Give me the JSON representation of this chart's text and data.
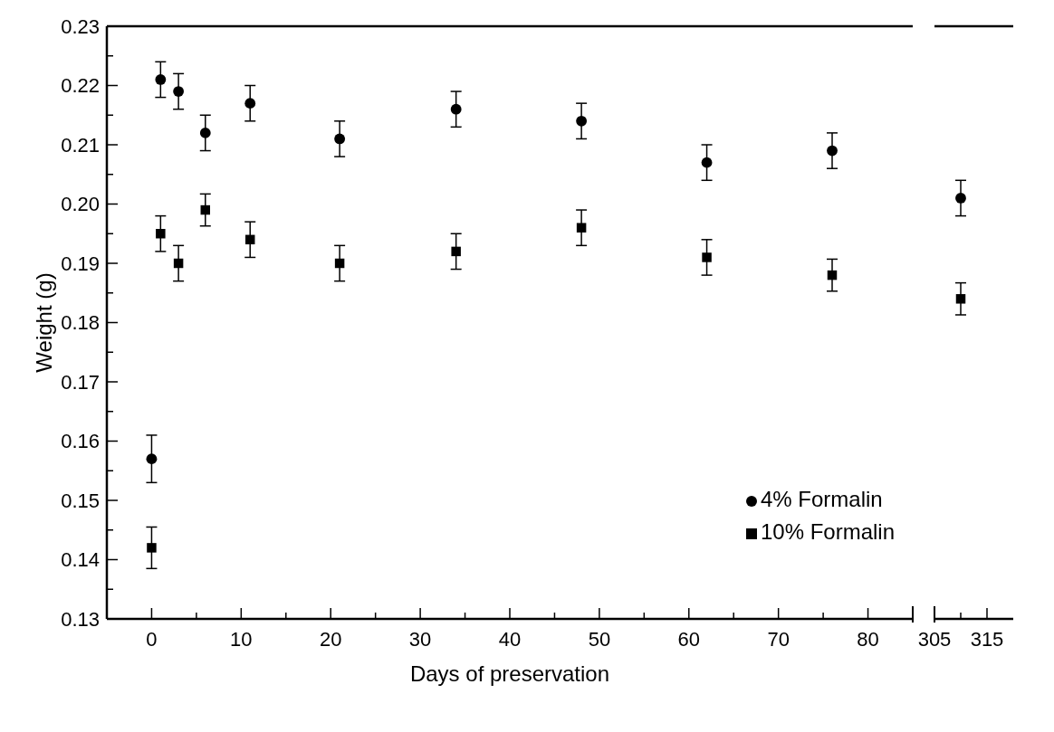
{
  "chart_data": [
    {
      "type": "scatter",
      "xlabel": "Days of preservation",
      "ylabel": "Weight (g)",
      "xlim": [
        -5,
        85
      ],
      "xticks": [
        0,
        {
          "value": 5,
          "label": null
        },
        10,
        {
          "value": 15,
          "label": null
        },
        20,
        {
          "value": 25,
          "label": null
        },
        30,
        {
          "value": 35,
          "label": null
        },
        40,
        {
          "value": 45,
          "label": null
        },
        50,
        {
          "value": 55,
          "label": null
        },
        60,
        {
          "value": 65,
          "label": null
        },
        70,
        {
          "value": 75,
          "label": null
        },
        80
      ],
      "ylim": [
        0.13,
        0.23
      ],
      "yticks": [
        0.13,
        {
          "value": 0.135,
          "label": null
        },
        0.14,
        {
          "value": 0.145,
          "label": null
        },
        0.15,
        {
          "value": 0.155,
          "label": null
        },
        0.16,
        {
          "value": 0.165,
          "label": null
        },
        0.17,
        {
          "value": 0.175,
          "label": null
        },
        0.18,
        {
          "value": 0.185,
          "label": null
        },
        0.19,
        {
          "value": 0.195,
          "label": null
        },
        {
          "value": 0.2,
          "label": "0.20"
        },
        {
          "value": 0.205,
          "label": null
        },
        0.21,
        {
          "value": 0.215,
          "label": null
        },
        0.22,
        {
          "value": 0.225,
          "label": null
        },
        0.23
      ],
      "legend": "bottom right",
      "series": [
        {
          "name": "4% Formalin",
          "color": "#000000",
          "marker": "circle",
          "x": [
            0,
            1,
            3,
            6,
            11,
            21,
            34,
            48,
            62,
            76
          ],
          "values": [
            0.157,
            0.221,
            0.219,
            0.212,
            0.217,
            0.211,
            0.216,
            0.214,
            0.207,
            0.209
          ],
          "errors": [
            0.004,
            0.003,
            0.003,
            0.003,
            0.003,
            0.003,
            0.003,
            0.003,
            0.003,
            0.003
          ]
        },
        {
          "name": "10% Formalin",
          "color": "#000000",
          "marker": "square",
          "x": [
            0,
            1,
            3,
            6,
            11,
            21,
            34,
            48,
            62,
            76
          ],
          "values": [
            0.142,
            0.195,
            0.19,
            0.199,
            0.194,
            0.19,
            0.192,
            0.196,
            0.191,
            0.188
          ],
          "errors": [
            0.0035,
            0.003,
            0.003,
            0.0027,
            0.003,
            0.003,
            0.003,
            0.003,
            0.003,
            0.0027
          ]
        }
      ]
    },
    {
      "type": "scatter",
      "xlim": [
        305,
        320
      ],
      "xticks": [
        305,
        {
          "value": 310,
          "label": null
        },
        315
      ],
      "ylim": [
        0.13,
        0.23
      ],
      "tick_labels": "x",
      "series": [
        {
          "color": "#000000",
          "marker": "circle",
          "x": [
            310
          ],
          "values": [
            0.201
          ],
          "errors": [
            0.003
          ]
        },
        {
          "color": "#000000",
          "marker": "square",
          "x": [
            310
          ],
          "values": [
            0.184
          ],
          "errors": [
            0.0027
          ]
        }
      ]
    }
  ]
}
